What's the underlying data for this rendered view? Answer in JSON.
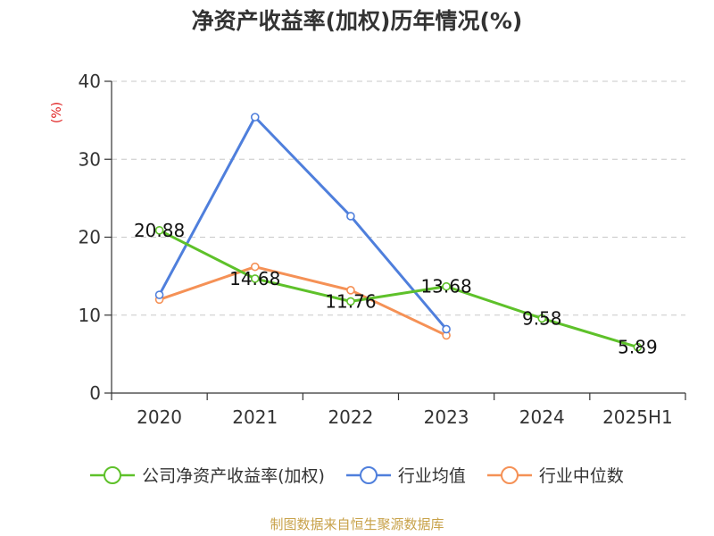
{
  "chart_data": {
    "type": "line",
    "title": "净资产收益率(加权)历年情况(%)",
    "ylabel": "(%)",
    "categories": [
      "2020",
      "2021",
      "2022",
      "2023",
      "2024",
      "2025H1"
    ],
    "ylim": [
      0,
      40
    ],
    "yticks": [
      0,
      10,
      20,
      30,
      40
    ],
    "grid": true,
    "legend_position": "bottom",
    "series": [
      {
        "name": "公司净资产收益率(加权)",
        "color": "#5ec12a",
        "values": [
          20.88,
          14.68,
          11.76,
          13.68,
          9.58,
          5.89
        ],
        "labels": [
          "20.88",
          "14.68",
          "11.76",
          "13.68",
          "9.58",
          "5.89"
        ]
      },
      {
        "name": "行业均值",
        "color": "#4f7fdc",
        "values": [
          12.6,
          35.4,
          22.7,
          8.2,
          null,
          null
        ]
      },
      {
        "name": "行业中位数",
        "color": "#f59156",
        "values": [
          12.0,
          16.2,
          13.2,
          7.4,
          null,
          null
        ]
      }
    ]
  },
  "footer": {
    "text": "制图数据来自恒生聚源数据库",
    "color": "#c8a24a"
  },
  "ylabel_color": "#e02020"
}
